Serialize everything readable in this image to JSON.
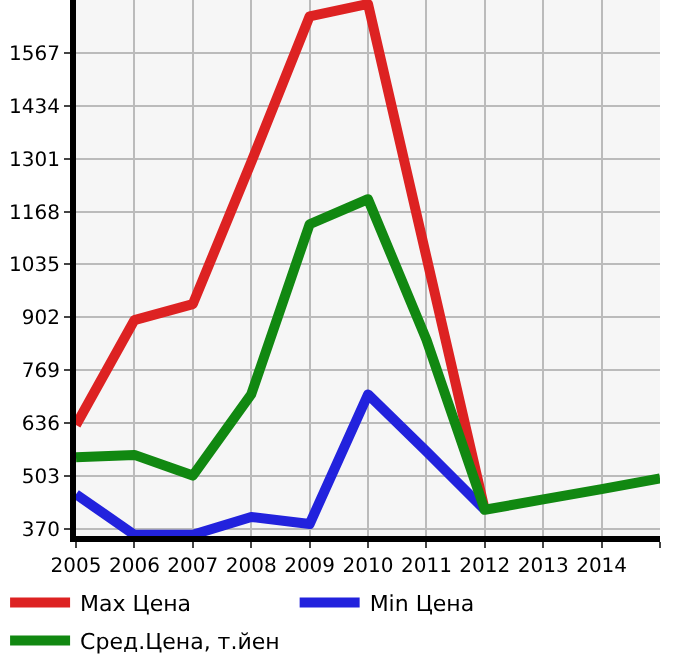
{
  "chart_data": {
    "type": "line",
    "x": [
      2005,
      2006,
      2007,
      2008,
      2009,
      2010,
      2011,
      2012,
      2013,
      2014,
      2015
    ],
    "series": [
      {
        "name": "Max Цена",
        "color": "#dd2222",
        "values": [
          631,
          895,
          935,
          1292,
          1659,
          1690,
          1054,
          418,
          null,
          null,
          null
        ]
      },
      {
        "name": "Min Цена",
        "color": "#2222dd",
        "values": [
          457,
          355,
          355,
          400,
          382,
          708,
          565,
          418,
          null,
          null,
          null
        ]
      },
      {
        "name": "Сред.Цена, т.йен",
        "color": "#118811",
        "values": [
          550,
          556,
          504,
          708,
          1136,
          1199,
          846,
          418,
          444,
          470,
          497
        ]
      }
    ],
    "xlim": [
      2005,
      2015
    ],
    "xticks": [
      2005,
      2006,
      2007,
      2008,
      2009,
      2010,
      2011,
      2012,
      2013,
      2014,
      {
        "value": 2015,
        "label": null
      }
    ],
    "ylim": [
      352,
      1700
    ],
    "yticks": [
      370,
      503,
      636,
      769,
      902,
      1035,
      1168,
      1301,
      1434,
      1567
    ],
    "grid": true,
    "legend": "bottom",
    "marker": "none",
    "line_style": "solid"
  }
}
